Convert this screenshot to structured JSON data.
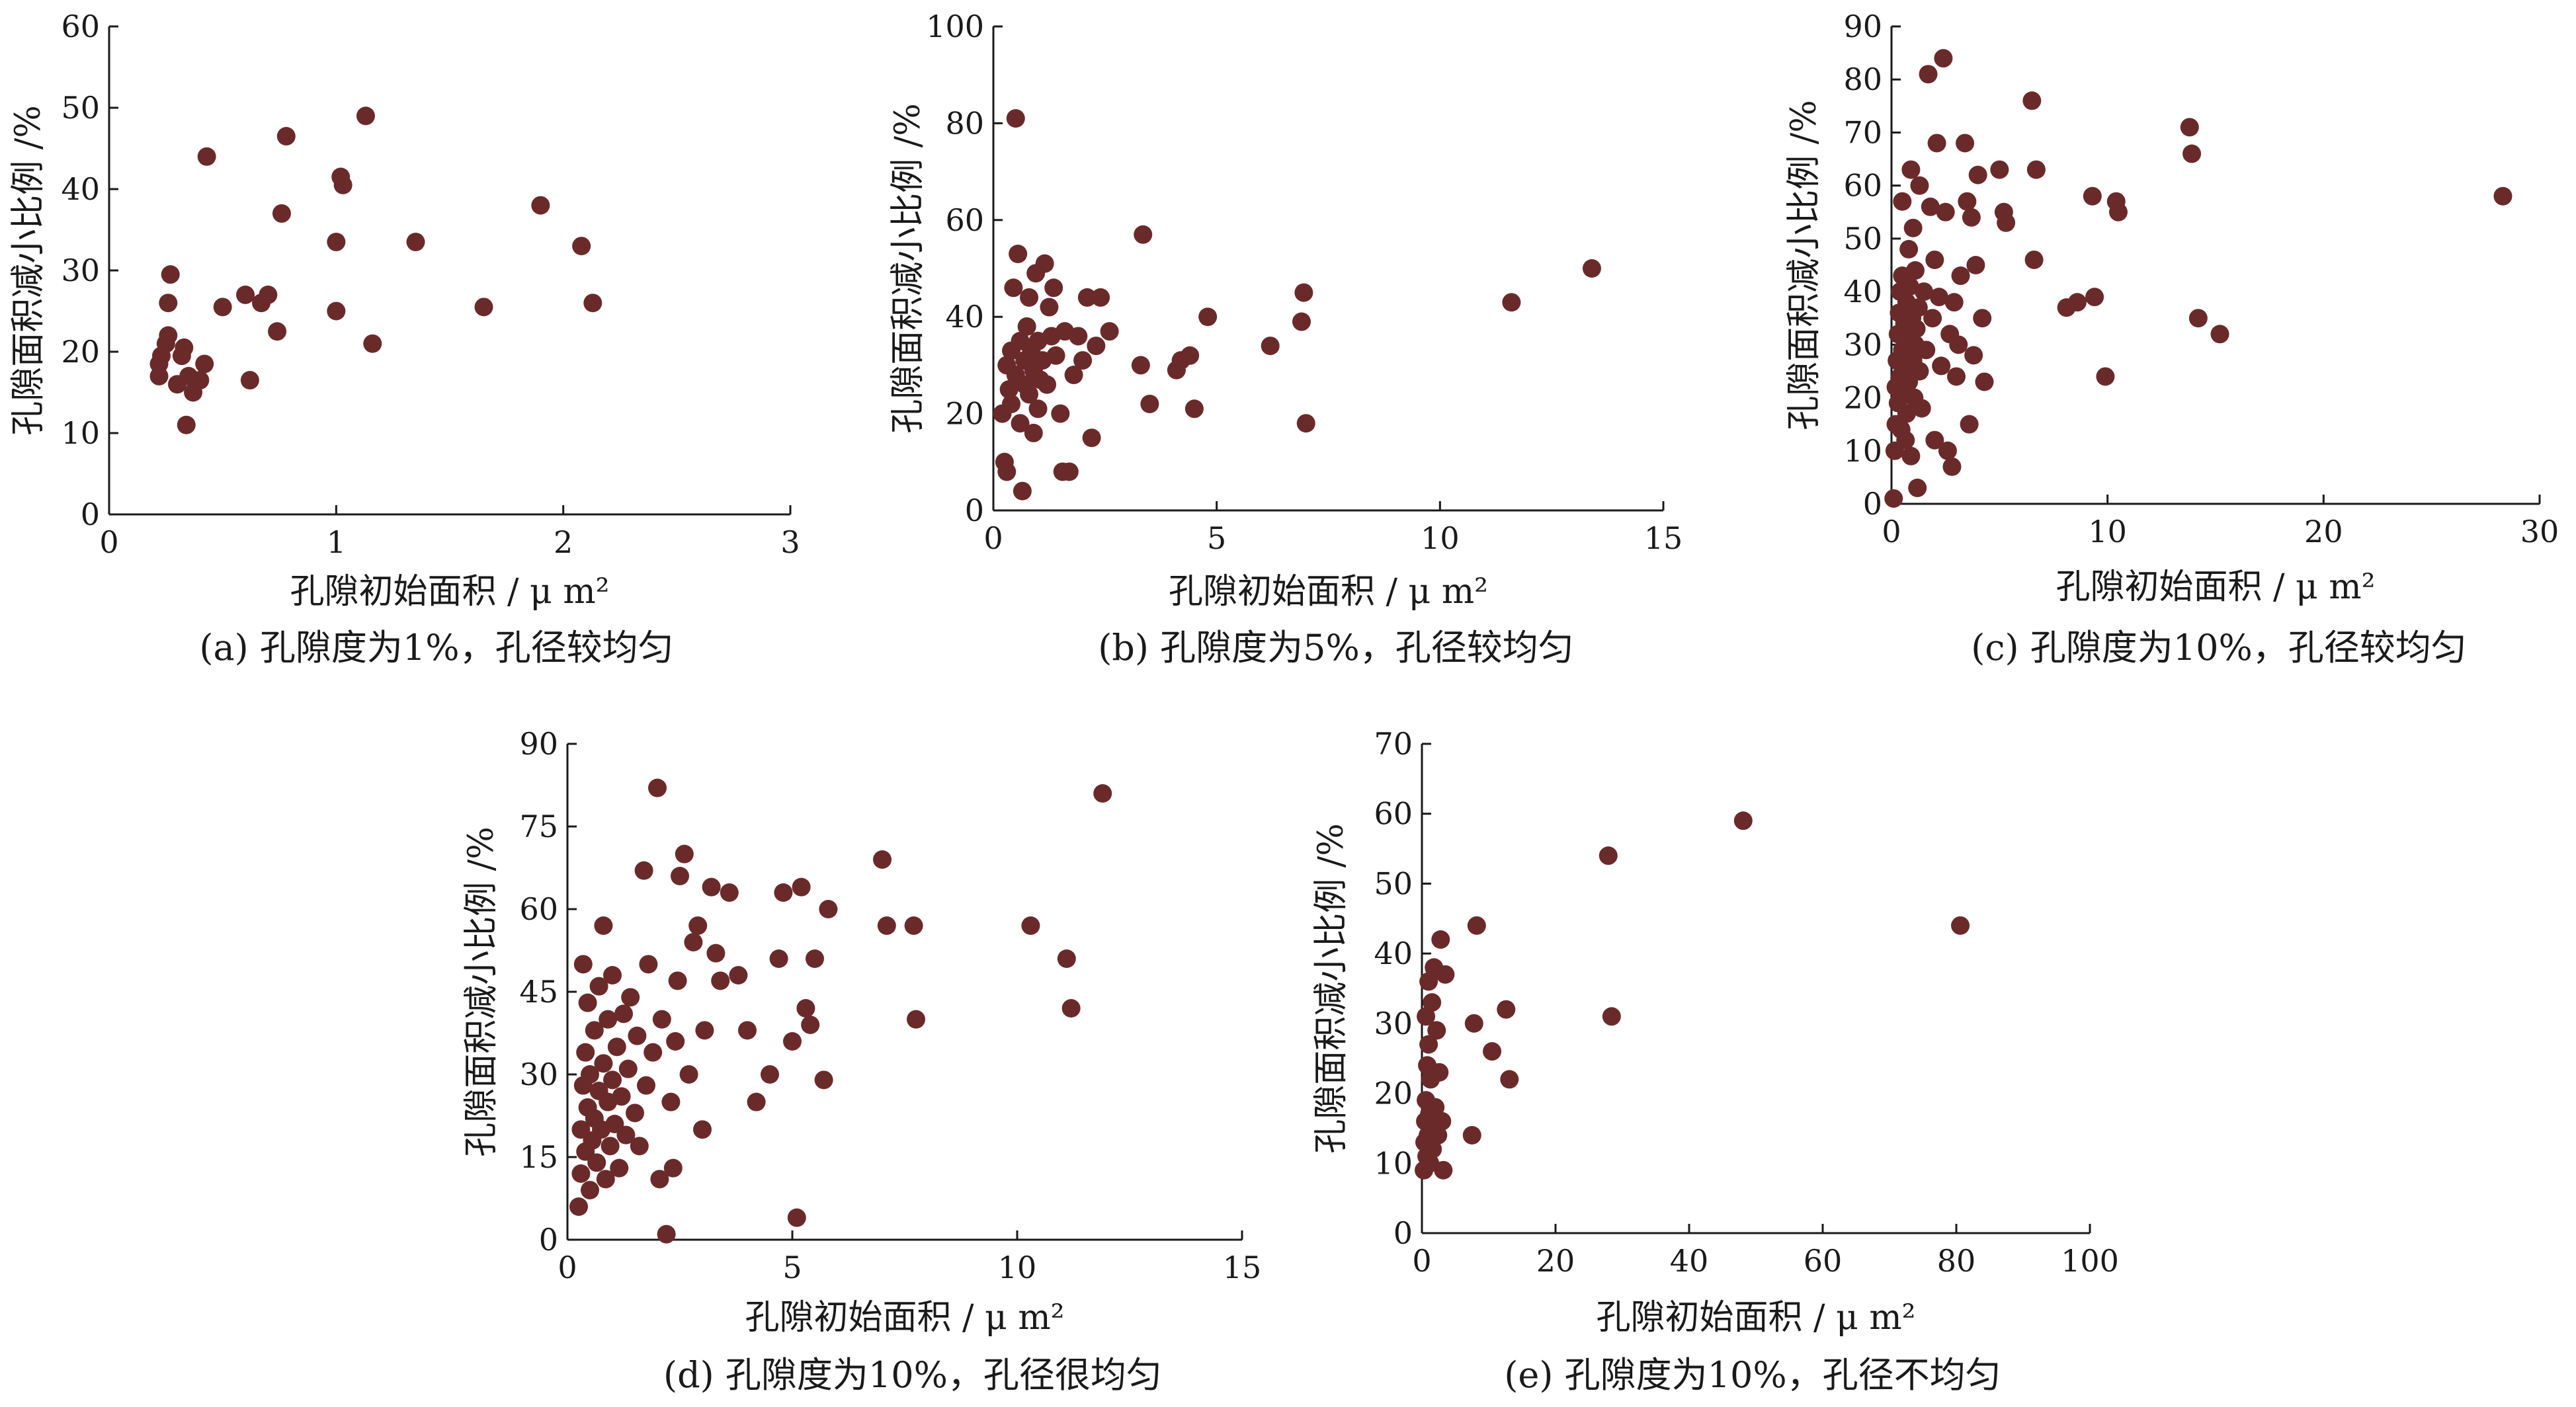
{
  "chart_data": [
    {
      "type": "scatter",
      "caption": "(a) 孔隙度为1%，孔径较均匀",
      "xlabel": "孔隙初始面积 / μ m²",
      "ylabel": "孔隙面积减小比例 /%",
      "xlim": [
        0,
        3
      ],
      "ylim": [
        0,
        60
      ],
      "xticks": [
        0,
        1,
        2,
        3
      ],
      "yticks": [
        0,
        10,
        20,
        30,
        40,
        50,
        60
      ],
      "color": "#6b2a2a",
      "points": [
        [
          0.22,
          17
        ],
        [
          0.22,
          18.5
        ],
        [
          0.23,
          19.5
        ],
        [
          0.25,
          21
        ],
        [
          0.26,
          22
        ],
        [
          0.26,
          26
        ],
        [
          0.27,
          29.5
        ],
        [
          0.3,
          16
        ],
        [
          0.32,
          19.5
        ],
        [
          0.33,
          20.5
        ],
        [
          0.34,
          11
        ],
        [
          0.35,
          17
        ],
        [
          0.37,
          15
        ],
        [
          0.4,
          16.5
        ],
        [
          0.42,
          18.5
        ],
        [
          0.43,
          44
        ],
        [
          0.5,
          25.5
        ],
        [
          0.6,
          27
        ],
        [
          0.62,
          16.5
        ],
        [
          0.67,
          26
        ],
        [
          0.7,
          27
        ],
        [
          0.74,
          22.5
        ],
        [
          0.76,
          37
        ],
        [
          0.78,
          46.5
        ],
        [
          1.0,
          25
        ],
        [
          1.0,
          33.5
        ],
        [
          1.02,
          41.5
        ],
        [
          1.03,
          40.5
        ],
        [
          1.13,
          49
        ],
        [
          1.16,
          21
        ],
        [
          1.35,
          33.5
        ],
        [
          1.65,
          25.5
        ],
        [
          1.9,
          38
        ],
        [
          2.08,
          33
        ],
        [
          2.13,
          26
        ]
      ]
    },
    {
      "type": "scatter",
      "caption": "(b) 孔隙度为5%，孔径较均匀",
      "xlabel": "孔隙初始面积 / μ m²",
      "ylabel": "孔隙面积减小比例 /%",
      "xlim": [
        0,
        15
      ],
      "ylim": [
        0,
        100
      ],
      "xticks": [
        0,
        5,
        10,
        15
      ],
      "yticks": [
        0,
        20,
        40,
        60,
        80,
        100
      ],
      "color": "#6b2a2a",
      "points": [
        [
          0.2,
          20
        ],
        [
          0.25,
          10
        ],
        [
          0.3,
          8
        ],
        [
          0.3,
          30
        ],
        [
          0.35,
          25
        ],
        [
          0.4,
          33
        ],
        [
          0.4,
          22
        ],
        [
          0.45,
          46
        ],
        [
          0.5,
          28
        ],
        [
          0.5,
          81
        ],
        [
          0.55,
          53
        ],
        [
          0.6,
          35
        ],
        [
          0.6,
          18
        ],
        [
          0.65,
          4
        ],
        [
          0.7,
          26
        ],
        [
          0.7,
          31
        ],
        [
          0.75,
          38
        ],
        [
          0.8,
          44
        ],
        [
          0.8,
          24
        ],
        [
          0.85,
          33
        ],
        [
          0.9,
          16
        ],
        [
          0.9,
          29
        ],
        [
          0.95,
          49
        ],
        [
          1.0,
          21
        ],
        [
          1.0,
          35
        ],
        [
          1.05,
          27
        ],
        [
          1.1,
          31
        ],
        [
          1.15,
          51
        ],
        [
          1.2,
          26
        ],
        [
          1.25,
          42
        ],
        [
          1.3,
          36
        ],
        [
          1.35,
          46
        ],
        [
          1.4,
          32
        ],
        [
          1.5,
          20
        ],
        [
          1.55,
          8
        ],
        [
          1.6,
          37
        ],
        [
          1.7,
          8
        ],
        [
          1.8,
          28
        ],
        [
          1.9,
          36
        ],
        [
          2.0,
          31
        ],
        [
          2.1,
          44
        ],
        [
          2.2,
          15
        ],
        [
          2.3,
          34
        ],
        [
          2.4,
          44
        ],
        [
          2.6,
          37
        ],
        [
          3.3,
          30
        ],
        [
          3.35,
          57
        ],
        [
          3.5,
          22
        ],
        [
          4.1,
          29
        ],
        [
          4.2,
          31
        ],
        [
          4.4,
          32
        ],
        [
          4.5,
          21
        ],
        [
          4.8,
          40
        ],
        [
          6.2,
          34
        ],
        [
          6.9,
          39
        ],
        [
          6.95,
          45
        ],
        [
          7.0,
          18
        ],
        [
          11.6,
          43
        ],
        [
          13.4,
          50
        ]
      ]
    },
    {
      "type": "scatter",
      "caption": "(c) 孔隙度为10%，孔径较均匀",
      "xlabel": "孔隙初始面积 / μ m²",
      "ylabel": "孔隙面积减小比例 /%",
      "xlim": [
        0,
        30
      ],
      "ylim": [
        0,
        90
      ],
      "xticks": [
        0,
        10,
        20,
        30
      ],
      "yticks": [
        0,
        10,
        20,
        30,
        40,
        50,
        60,
        70,
        80,
        90
      ],
      "color": "#6b2a2a",
      "points": [
        [
          0.1,
          1
        ],
        [
          0.15,
          10
        ],
        [
          0.2,
          15
        ],
        [
          0.2,
          22
        ],
        [
          0.25,
          27
        ],
        [
          0.3,
          19
        ],
        [
          0.3,
          32
        ],
        [
          0.35,
          36
        ],
        [
          0.4,
          24
        ],
        [
          0.4,
          40
        ],
        [
          0.45,
          14
        ],
        [
          0.5,
          29
        ],
        [
          0.5,
          43
        ],
        [
          0.5,
          57
        ],
        [
          0.55,
          21
        ],
        [
          0.6,
          34
        ],
        [
          0.6,
          26
        ],
        [
          0.65,
          12
        ],
        [
          0.7,
          38
        ],
        [
          0.7,
          17
        ],
        [
          0.75,
          31
        ],
        [
          0.8,
          48
        ],
        [
          0.8,
          23
        ],
        [
          0.85,
          41
        ],
        [
          0.9,
          63
        ],
        [
          0.9,
          9
        ],
        [
          0.95,
          35
        ],
        [
          1.0,
          27
        ],
        [
          1.0,
          52
        ],
        [
          1.05,
          20
        ],
        [
          1.1,
          44
        ],
        [
          1.1,
          30
        ],
        [
          1.15,
          33
        ],
        [
          1.2,
          3
        ],
        [
          1.25,
          37
        ],
        [
          1.3,
          25
        ],
        [
          1.3,
          60
        ],
        [
          1.4,
          18
        ],
        [
          1.5,
          40
        ],
        [
          1.6,
          29
        ],
        [
          1.7,
          81
        ],
        [
          1.8,
          56
        ],
        [
          1.9,
          35
        ],
        [
          2.0,
          46
        ],
        [
          2.0,
          12
        ],
        [
          2.1,
          68
        ],
        [
          2.2,
          39
        ],
        [
          2.3,
          26
        ],
        [
          2.4,
          84
        ],
        [
          2.5,
          55
        ],
        [
          2.6,
          10
        ],
        [
          2.7,
          32
        ],
        [
          2.8,
          7
        ],
        [
          2.9,
          38
        ],
        [
          3.0,
          24
        ],
        [
          3.1,
          30
        ],
        [
          3.2,
          43
        ],
        [
          3.4,
          68
        ],
        [
          3.5,
          57
        ],
        [
          3.6,
          15
        ],
        [
          3.7,
          54
        ],
        [
          3.8,
          28
        ],
        [
          3.9,
          45
        ],
        [
          4.0,
          62
        ],
        [
          4.2,
          35
        ],
        [
          4.3,
          23
        ],
        [
          5.0,
          63
        ],
        [
          5.2,
          55
        ],
        [
          5.3,
          53
        ],
        [
          6.5,
          76
        ],
        [
          6.6,
          46
        ],
        [
          6.7,
          63
        ],
        [
          8.1,
          37
        ],
        [
          8.6,
          38
        ],
        [
          9.3,
          58
        ],
        [
          9.4,
          39
        ],
        [
          9.9,
          24
        ],
        [
          10.4,
          57
        ],
        [
          10.5,
          55
        ],
        [
          13.8,
          71
        ],
        [
          13.9,
          66
        ],
        [
          14.2,
          35
        ],
        [
          15.2,
          32
        ],
        [
          28.3,
          58
        ]
      ]
    },
    {
      "type": "scatter",
      "caption": "(d) 孔隙度为10%，孔径很均匀",
      "xlabel": "孔隙初始面积 / μ m²",
      "ylabel": "孔隙面积减小比例 /%",
      "xlim": [
        0,
        15
      ],
      "ylim": [
        0,
        90
      ],
      "xticks": [
        0,
        5,
        10,
        15
      ],
      "yticks": [
        0,
        15,
        30,
        45,
        60,
        75,
        90
      ],
      "color": "#6b2a2a",
      "points": [
        [
          0.25,
          6
        ],
        [
          0.3,
          12
        ],
        [
          0.3,
          20
        ],
        [
          0.35,
          28
        ],
        [
          0.35,
          50
        ],
        [
          0.4,
          16
        ],
        [
          0.4,
          34
        ],
        [
          0.45,
          24
        ],
        [
          0.45,
          43
        ],
        [
          0.5,
          9
        ],
        [
          0.5,
          30
        ],
        [
          0.55,
          18
        ],
        [
          0.6,
          22
        ],
        [
          0.6,
          38
        ],
        [
          0.65,
          14
        ],
        [
          0.7,
          27
        ],
        [
          0.7,
          46
        ],
        [
          0.75,
          20
        ],
        [
          0.8,
          57
        ],
        [
          0.8,
          32
        ],
        [
          0.85,
          11
        ],
        [
          0.9,
          25
        ],
        [
          0.9,
          40
        ],
        [
          0.95,
          17
        ],
        [
          1.0,
          29
        ],
        [
          1.0,
          48
        ],
        [
          1.05,
          21
        ],
        [
          1.1,
          35
        ],
        [
          1.15,
          13
        ],
        [
          1.2,
          26
        ],
        [
          1.25,
          41
        ],
        [
          1.3,
          19
        ],
        [
          1.35,
          31
        ],
        [
          1.4,
          44
        ],
        [
          1.5,
          23
        ],
        [
          1.55,
          37
        ],
        [
          1.6,
          17
        ],
        [
          1.7,
          67
        ],
        [
          1.75,
          28
        ],
        [
          1.8,
          50
        ],
        [
          1.9,
          34
        ],
        [
          2.0,
          82
        ],
        [
          2.05,
          11
        ],
        [
          2.1,
          40
        ],
        [
          2.2,
          1
        ],
        [
          2.3,
          25
        ],
        [
          2.35,
          13
        ],
        [
          2.4,
          36
        ],
        [
          2.45,
          47
        ],
        [
          2.5,
          66
        ],
        [
          2.6,
          70
        ],
        [
          2.7,
          30
        ],
        [
          2.8,
          54
        ],
        [
          2.9,
          57
        ],
        [
          3.0,
          20
        ],
        [
          3.05,
          38
        ],
        [
          3.2,
          64
        ],
        [
          3.3,
          52
        ],
        [
          3.4,
          47
        ],
        [
          3.6,
          63
        ],
        [
          3.8,
          48
        ],
        [
          4.0,
          38
        ],
        [
          4.2,
          25
        ],
        [
          4.5,
          30
        ],
        [
          4.7,
          51
        ],
        [
          4.8,
          63
        ],
        [
          5.0,
          36
        ],
        [
          5.1,
          4
        ],
        [
          5.2,
          64
        ],
        [
          5.3,
          42
        ],
        [
          5.4,
          39
        ],
        [
          5.5,
          51
        ],
        [
          5.7,
          29
        ],
        [
          5.8,
          60
        ],
        [
          7.0,
          69
        ],
        [
          7.1,
          57
        ],
        [
          7.7,
          57
        ],
        [
          7.75,
          40
        ],
        [
          10.3,
          57
        ],
        [
          11.1,
          51
        ],
        [
          11.2,
          42
        ],
        [
          11.9,
          81
        ]
      ]
    },
    {
      "type": "scatter",
      "caption": "(e) 孔隙度为10%，孔径不均匀",
      "xlabel": "孔隙初始面积 / μ m²",
      "ylabel": "孔隙面积减小比例 /%",
      "xlim": [
        0,
        100
      ],
      "ylim": [
        0,
        70
      ],
      "xticks": [
        0,
        20,
        40,
        60,
        80,
        100
      ],
      "yticks": [
        0,
        10,
        20,
        30,
        40,
        50,
        60,
        70
      ],
      "color": "#6b2a2a",
      "points": [
        [
          0.3,
          9
        ],
        [
          0.4,
          13
        ],
        [
          0.5,
          16
        ],
        [
          0.6,
          19
        ],
        [
          0.6,
          31
        ],
        [
          0.7,
          11
        ],
        [
          0.8,
          24
        ],
        [
          0.9,
          14
        ],
        [
          1.0,
          36
        ],
        [
          1.0,
          27
        ],
        [
          1.1,
          17
        ],
        [
          1.2,
          10
        ],
        [
          1.3,
          22
        ],
        [
          1.4,
          15
        ],
        [
          1.5,
          33
        ],
        [
          1.6,
          12
        ],
        [
          1.8,
          38
        ],
        [
          2.0,
          18
        ],
        [
          2.2,
          29
        ],
        [
          2.4,
          14
        ],
        [
          2.6,
          23
        ],
        [
          2.8,
          42
        ],
        [
          3.0,
          16
        ],
        [
          3.2,
          9
        ],
        [
          3.5,
          37
        ],
        [
          7.5,
          14
        ],
        [
          7.8,
          30
        ],
        [
          8.2,
          44
        ],
        [
          10.5,
          26
        ],
        [
          12.6,
          32
        ],
        [
          13.1,
          22
        ],
        [
          27.9,
          54
        ],
        [
          28.4,
          31
        ],
        [
          48.1,
          59
        ],
        [
          80.6,
          44
        ]
      ]
    }
  ]
}
